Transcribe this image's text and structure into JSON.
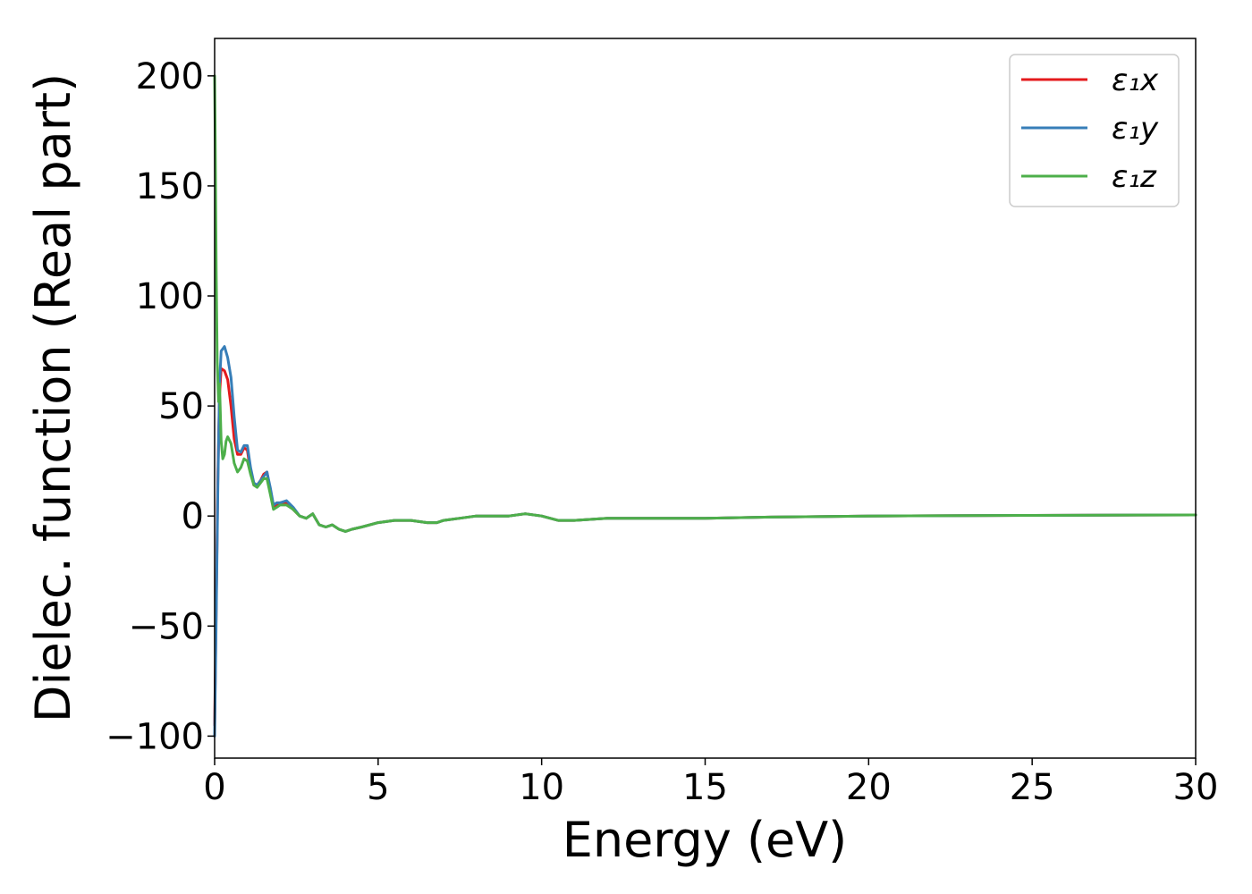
{
  "chart_data": {
    "type": "line",
    "title": "",
    "xlabel": "Energy (eV)",
    "ylabel": "Dielec. function (Real part)",
    "xlim": [
      0,
      30
    ],
    "ylim": [
      -110,
      217
    ],
    "xticks": [
      0,
      5,
      10,
      15,
      20,
      25,
      30
    ],
    "yticks": [
      -100,
      -50,
      0,
      50,
      100,
      150,
      200
    ],
    "xtick_labels": [
      "0",
      "5",
      "10",
      "15",
      "20",
      "25",
      "30"
    ],
    "ytick_labels": [
      "−100",
      "−50",
      "0",
      "50",
      "100",
      "150",
      "200"
    ],
    "grid": false,
    "legend": "top-right",
    "series": [
      {
        "name": "ε₁x",
        "color": "#e41a1c",
        "x": [
          0.0,
          0.05,
          0.1,
          0.15,
          0.2,
          0.3,
          0.4,
          0.5,
          0.6,
          0.7,
          0.8,
          0.9,
          1.0,
          1.1,
          1.2,
          1.3,
          1.4,
          1.5,
          1.6,
          1.7,
          1.8,
          1.9,
          2.0,
          2.2,
          2.4,
          2.6,
          2.8,
          3.0,
          3.2,
          3.4,
          3.6,
          3.8,
          4.0,
          4.2,
          4.5,
          5.0,
          5.5,
          6.0,
          6.5,
          6.8,
          7.0,
          7.5,
          8.0,
          8.5,
          9.0,
          9.5,
          10.0,
          10.5,
          11.0,
          12.0,
          13.0,
          14.0,
          15.0,
          17.0,
          20.0,
          25.0,
          30.0
        ],
        "y": [
          -95,
          -40,
          20,
          55,
          67,
          66,
          62,
          50,
          35,
          28,
          28,
          31,
          30,
          20,
          14,
          14,
          16,
          19,
          20,
          12,
          4,
          5,
          6,
          6,
          3,
          0,
          -1,
          1,
          -4,
          -5,
          -4,
          -6,
          -7,
          -6,
          -5,
          -3,
          -2,
          -2,
          -3,
          -3,
          -2,
          -1,
          0,
          0,
          0,
          1,
          0,
          -2,
          -2,
          -1,
          -1,
          -1,
          -1,
          -0.5,
          0,
          0.3,
          0.5
        ]
      },
      {
        "name": "ε₁y",
        "color": "#377eb8",
        "x": [
          0.0,
          0.05,
          0.1,
          0.15,
          0.2,
          0.3,
          0.4,
          0.5,
          0.6,
          0.7,
          0.8,
          0.9,
          1.0,
          1.1,
          1.2,
          1.3,
          1.4,
          1.5,
          1.6,
          1.7,
          1.8,
          1.9,
          2.0,
          2.2,
          2.4,
          2.6,
          2.8,
          3.0,
          3.2,
          3.4,
          3.6,
          3.8,
          4.0,
          4.2,
          4.5,
          5.0,
          5.5,
          6.0,
          6.5,
          6.8,
          7.0,
          7.5,
          8.0,
          8.5,
          9.0,
          9.5,
          10.0,
          10.5,
          11.0,
          12.0,
          13.0,
          14.0,
          15.0,
          17.0,
          20.0,
          25.0,
          30.0
        ],
        "y": [
          -100,
          -45,
          15,
          60,
          75,
          77,
          72,
          63,
          45,
          30,
          29,
          32,
          32,
          22,
          15,
          14,
          16,
          18,
          20,
          13,
          5,
          6,
          6,
          7,
          4,
          0,
          -1,
          1,
          -4,
          -5,
          -4,
          -6,
          -7,
          -6,
          -5,
          -3,
          -2,
          -2,
          -3,
          -3,
          -2,
          -1,
          0,
          0,
          0,
          1,
          0,
          -2,
          -2,
          -1,
          -1,
          -1,
          -1,
          -0.5,
          0,
          0.3,
          0.5
        ]
      },
      {
        "name": "ε₁z",
        "color": "#4daf4a",
        "x": [
          0.0,
          0.02,
          0.05,
          0.08,
          0.12,
          0.15,
          0.2,
          0.25,
          0.3,
          0.35,
          0.4,
          0.5,
          0.6,
          0.7,
          0.8,
          0.9,
          1.0,
          1.1,
          1.2,
          1.3,
          1.4,
          1.5,
          1.6,
          1.7,
          1.8,
          1.9,
          2.0,
          2.2,
          2.4,
          2.6,
          2.8,
          3.0,
          3.2,
          3.4,
          3.6,
          3.8,
          4.0,
          4.2,
          4.5,
          5.0,
          5.5,
          6.0,
          6.5,
          6.8,
          7.0,
          7.5,
          8.0,
          8.5,
          9.0,
          9.5,
          10.0,
          10.5,
          11.0,
          12.0,
          13.0,
          14.0,
          15.0,
          17.0,
          20.0,
          25.0,
          30.0
        ],
        "y": [
          200,
          170,
          110,
          70,
          52,
          60,
          34,
          26,
          28,
          34,
          36,
          33,
          24,
          20,
          22,
          26,
          25,
          19,
          14,
          13,
          15,
          17,
          17,
          10,
          3,
          4,
          5,
          5,
          3,
          0,
          -1,
          1,
          -4,
          -5,
          -4,
          -6,
          -7,
          -6,
          -5,
          -3,
          -2,
          -2,
          -3,
          -3,
          -2,
          -1,
          0,
          0,
          0,
          1,
          0,
          -2,
          -2,
          -1,
          -1,
          -1,
          -1,
          -0.5,
          0,
          0.3,
          0.5
        ]
      }
    ]
  }
}
